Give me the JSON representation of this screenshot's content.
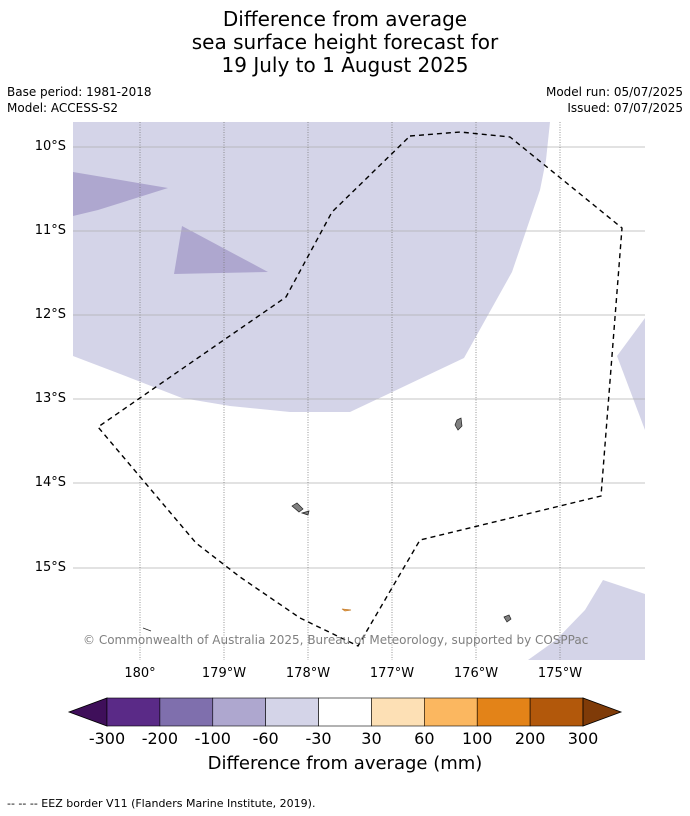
{
  "title": {
    "line1": "Difference from average",
    "line2": "sea surface height forecast for",
    "line3": "19 July to 1 August 2025"
  },
  "meta": {
    "base_period": "Base period: 1981-2018",
    "model": "Model: ACCESS-S2",
    "model_run": "Model run: 05/07/2025",
    "issued": "Issued: 07/07/2025"
  },
  "map": {
    "lat_labels": [
      "10°S",
      "11°S",
      "12°S",
      "13°S",
      "14°S",
      "15°S"
    ],
    "lon_labels": [
      "180°",
      "179°W",
      "178°W",
      "177°W",
      "176°W",
      "175°W"
    ],
    "copyright": "© Commonwealth of Australia 2025, Bureau of Meteorology, supported by COSPPac"
  },
  "colorbar": {
    "title": "Difference from average (mm)",
    "ticks": [
      "-300",
      "-200",
      "-100",
      "-60",
      "-30",
      "30",
      "60",
      "100",
      "200",
      "300"
    ],
    "colors": [
      "#3f0f5a",
      "#5a2a87",
      "#7f6fad",
      "#aea7cf",
      "#d4d4e8",
      "#ffffff",
      "#fde0b5",
      "#fbb760",
      "#e38318",
      "#b2580b",
      "#7f3b08"
    ]
  },
  "footnote": "--  --  -- EEZ border V11 (Flanders Marine Institute, 2019)."
}
